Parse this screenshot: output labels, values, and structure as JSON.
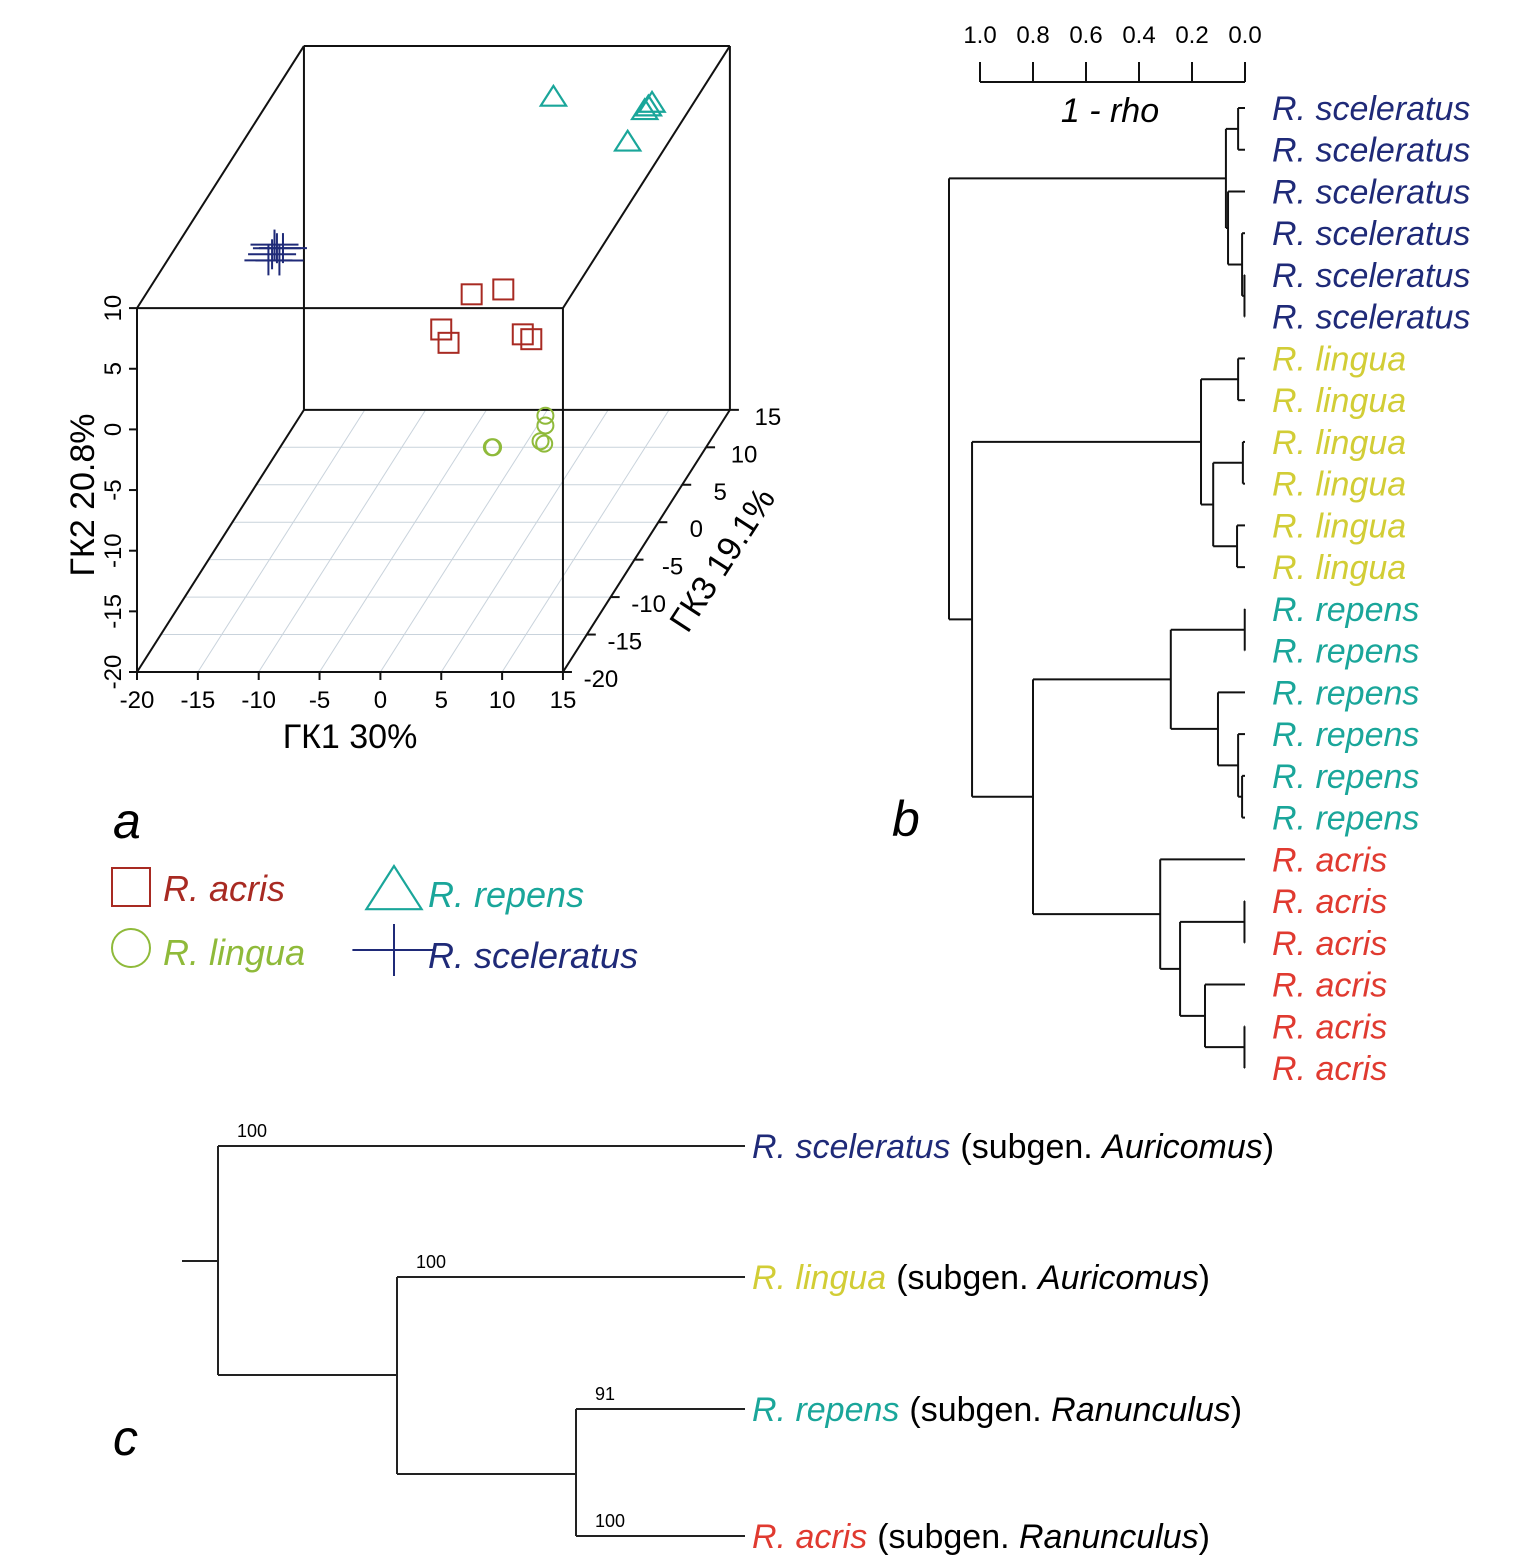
{
  "panel_labels": {
    "a": "a",
    "b": "b",
    "c": "c"
  },
  "colors": {
    "sceleratus": "#1f2a78",
    "lingua_plot": "#8fba3a",
    "lingua_tree": "#d2cd36",
    "repens": "#1aa69a",
    "acris_plot": "#a82a22",
    "acris_tree": "#e03a30",
    "axis": "#111111",
    "grid": "#c9d3dc"
  },
  "chart_data": [
    {
      "panel": "a",
      "type": "scatter",
      "subtype": "3d",
      "xlabel": "ГК1 30%",
      "ylabel": "ГК2 20.8%",
      "zlabel": "ГК3 19.1%",
      "xlim": [
        -20,
        15
      ],
      "ylim": [
        -20,
        10
      ],
      "zlim": [
        -20,
        15
      ],
      "xticks": [
        "-20",
        "-15",
        "-10",
        "-5",
        "0",
        "5",
        "10",
        "15"
      ],
      "yticks": [
        "-20",
        "-15",
        "-10",
        "-5",
        "0",
        "5",
        "10"
      ],
      "zticks": [
        "-20",
        "-15",
        "-10",
        "-5",
        "0",
        "5",
        "10",
        "15"
      ],
      "grid": "floor",
      "legend": [
        {
          "label": "R. acris",
          "marker": "square",
          "color": "#a82a22"
        },
        {
          "label": "R. repens",
          "marker": "triangle",
          "color": "#1aa69a"
        },
        {
          "label": "R. lingua",
          "marker": "circle",
          "color": "#8fba3a"
        },
        {
          "label": "R. sceleratus",
          "marker": "cross",
          "color": "#1f2a78"
        }
      ],
      "series": [
        {
          "name": "R. acris",
          "marker": "square",
          "color": "#a82a22",
          "points": [
            [
              -2.3,
              -4.3,
              5
            ],
            [
              0.3,
              -3.9,
              5
            ],
            [
              -4.8,
              -7.2,
              5
            ],
            [
              -4.2,
              -8.3,
              5
            ],
            [
              1.9,
              -7.6,
              5
            ],
            [
              2.6,
              -8.0,
              5
            ]
          ]
        },
        {
          "name": "R. lingua",
          "marker": "circle",
          "color": "#8fba3a",
          "points": [
            [
              1.8,
              -17.4,
              10
            ],
            [
              1.8,
              -18.2,
              10
            ],
            [
              1.4,
              -19.5,
              10
            ],
            [
              -2.5,
              -20.0,
              10
            ],
            [
              -2.6,
              -20.0,
              10
            ],
            [
              1.7,
              -19.7,
              10
            ]
          ]
        },
        {
          "name": "R. repens",
          "marker": "triangle",
          "color": "#1aa69a",
          "points": [
            [
              0.5,
              5.8,
              15
            ],
            [
              8.3,
              5.0,
              15
            ],
            [
              8.6,
              5.3,
              15
            ],
            [
              8.0,
              4.7,
              15
            ],
            [
              6.6,
              2.1,
              15
            ]
          ]
        },
        {
          "name": "R. sceleratus",
          "marker": "cross",
          "color": "#1f2a78",
          "points": [
            [
              -18.7,
              -1.0,
              5
            ],
            [
              -18.3,
              -0.5,
              5
            ],
            [
              -19.0,
              -1.5,
              5
            ],
            [
              -18.0,
              -0.8,
              5.5
            ],
            [
              -18.5,
              -0.2,
              5
            ],
            [
              -17.9,
              -1.2,
              4.5
            ]
          ]
        }
      ]
    },
    {
      "panel": "b",
      "type": "dendrogram",
      "axis_label": "1 - rho",
      "ticks": [
        "1.0",
        "0.8",
        "0.6",
        "0.4",
        "0.2",
        "0.0"
      ],
      "tick_values": [
        1.0,
        0.8,
        0.6,
        0.4,
        0.2,
        0.0
      ],
      "leaves": [
        {
          "label": "R. sceleratus",
          "color": "#1f2a78"
        },
        {
          "label": "R. sceleratus",
          "color": "#1f2a78"
        },
        {
          "label": "R. sceleratus",
          "color": "#1f2a78"
        },
        {
          "label": "R. sceleratus",
          "color": "#1f2a78"
        },
        {
          "label": "R. sceleratus",
          "color": "#1f2a78"
        },
        {
          "label": "R. sceleratus",
          "color": "#1f2a78"
        },
        {
          "label": "R. lingua",
          "color": "#d2cd36"
        },
        {
          "label": "R. lingua",
          "color": "#d2cd36"
        },
        {
          "label": "R. lingua",
          "color": "#d2cd36"
        },
        {
          "label": "R. lingua",
          "color": "#d2cd36"
        },
        {
          "label": "R. lingua",
          "color": "#d2cd36"
        },
        {
          "label": "R. lingua",
          "color": "#d2cd36"
        },
        {
          "label": "R. repens",
          "color": "#1aa69a"
        },
        {
          "label": "R. repens",
          "color": "#1aa69a"
        },
        {
          "label": "R. repens",
          "color": "#1aa69a"
        },
        {
          "label": "R. repens",
          "color": "#1aa69a"
        },
        {
          "label": "R. repens",
          "color": "#1aa69a"
        },
        {
          "label": "R. repens",
          "color": "#1aa69a"
        },
        {
          "label": "R. acris",
          "color": "#e03a30"
        },
        {
          "label": "R. acris",
          "color": "#e03a30"
        },
        {
          "label": "R. acris",
          "color": "#e03a30"
        },
        {
          "label": "R. acris",
          "color": "#e03a30"
        },
        {
          "label": "R. acris",
          "color": "#e03a30"
        },
        {
          "label": "R. acris",
          "color": "#e03a30"
        }
      ],
      "tree": {
        "h": 1.117,
        "c": [
          {
            "h": 0.072,
            "c": [
              {
                "h": 0.026,
                "c": [
                  0,
                  1
                ]
              },
              {
                "h": 0.064,
                "c": [
                  2,
                  {
                    "h": 0.011,
                    "c": [
                      3,
                      {
                        "h": 0.002,
                        "c": [
                          4,
                          5
                        ]
                      }
                    ]
                  }
                ]
              }
            ]
          },
          {
            "h": 1.03,
            "c": [
              {
                "h": 0.166,
                "c": [
                  {
                    "h": 0.026,
                    "c": [
                      6,
                      7
                    ]
                  },
                  {
                    "h": 0.12,
                    "c": [
                      {
                        "h": 0.008,
                        "c": [
                          8,
                          9
                        ]
                      },
                      {
                        "h": 0.03,
                        "c": [
                          10,
                          11
                        ]
                      }
                    ]
                  }
                ]
              },
              {
                "h": 0.8,
                "c": [
                  {
                    "h": 0.28,
                    "c": [
                      {
                        "h": 0.001,
                        "c": [
                          12,
                          13
                        ]
                      },
                      {
                        "h": 0.102,
                        "c": [
                          14,
                          {
                            "h": 0.026,
                            "c": [
                              15,
                              {
                                "h": 0.011,
                                "c": [
                                  16,
                                  17
                                ]
                              }
                            ]
                          }
                        ]
                      }
                    ]
                  },
                  {
                    "h": 0.32,
                    "c": [
                      18,
                      {
                        "h": 0.245,
                        "c": [
                          {
                            "h": 0.002,
                            "c": [
                              19,
                              20
                            ]
                          },
                          {
                            "h": 0.151,
                            "c": [
                              21,
                              {
                                "h": 0.002,
                                "c": [
                                  22,
                                  23
                                ]
                              }
                            ]
                          }
                        ]
                      }
                    ]
                  }
                ]
              }
            ]
          }
        ]
      }
    },
    {
      "panel": "c",
      "type": "tree",
      "leaves": [
        {
          "species": "R. sceleratus",
          "prefix": "(subgen. ",
          "subgenus": "Auricomus",
          "suffix": ")",
          "color": "#1f2a78",
          "support": "100"
        },
        {
          "species": "R. lingua",
          "prefix": "(subgen. ",
          "subgenus": "Auricomus",
          "suffix": ")",
          "color": "#d2cd36",
          "support": "100"
        },
        {
          "species": "R. repens",
          "prefix": "(subgen. ",
          "subgenus": "Ranunculus",
          "suffix": ")",
          "color": "#1aa69a",
          "support": "91"
        },
        {
          "species": "R. acris",
          "prefix": "(subgen. ",
          "subgenus": "Ranunculus",
          "suffix": ")",
          "color": "#e03a30",
          "support": "100"
        }
      ],
      "topology": "(R. sceleratus,(R. lingua,(R. repens,R. acris)))"
    }
  ]
}
